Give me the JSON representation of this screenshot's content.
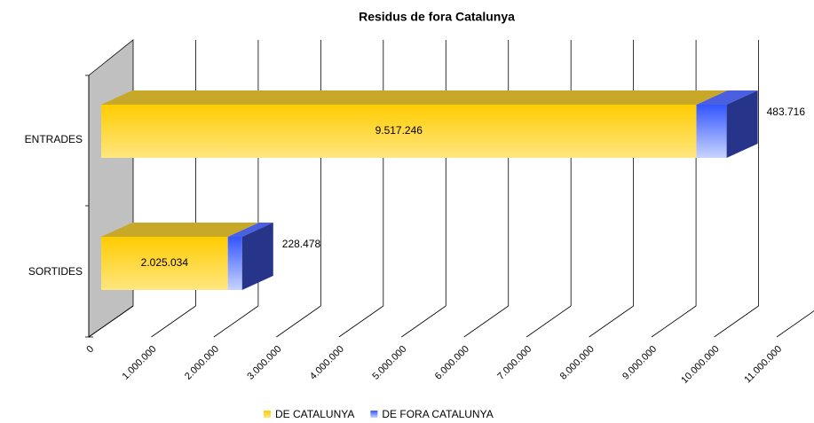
{
  "chart_data": {
    "type": "bar3d_stacked_horizontal",
    "title": "Residus de fora Catalunya",
    "categories": [
      "ENTRADES",
      "SORTIDES"
    ],
    "series": [
      {
        "name": "DE CATALUNYA",
        "color": "#ffcc00",
        "values": [
          9517246,
          2025034
        ],
        "value_labels": [
          "9.517.246",
          "2.025.034"
        ]
      },
      {
        "name": "DE FORA CATALUNYA",
        "color": "#3355ff",
        "values": [
          483716,
          228478
        ],
        "value_labels": [
          "483.716",
          "228.478"
        ]
      }
    ],
    "xlim": [
      0,
      11000000
    ],
    "xticks": [
      0,
      {
        "value": 1000000,
        "label": "1.000.000"
      },
      {
        "value": 2000000,
        "label": "2.000.000"
      },
      {
        "value": 3000000,
        "label": "3.000.000"
      },
      {
        "value": 4000000,
        "label": "4.000.000"
      },
      {
        "value": 5000000,
        "label": "5.000.000"
      },
      {
        "value": 6000000,
        "label": "6.000.000"
      },
      {
        "value": 7000000,
        "label": "7.000.000"
      },
      {
        "value": 8000000,
        "label": "8.000.000"
      },
      {
        "value": 9000000,
        "label": "9.000.000"
      },
      {
        "value": 10000000,
        "label": "10.000.000"
      },
      {
        "value": 11000000,
        "label": "11.000.000"
      }
    ],
    "grid": true,
    "legend": "bottom"
  }
}
